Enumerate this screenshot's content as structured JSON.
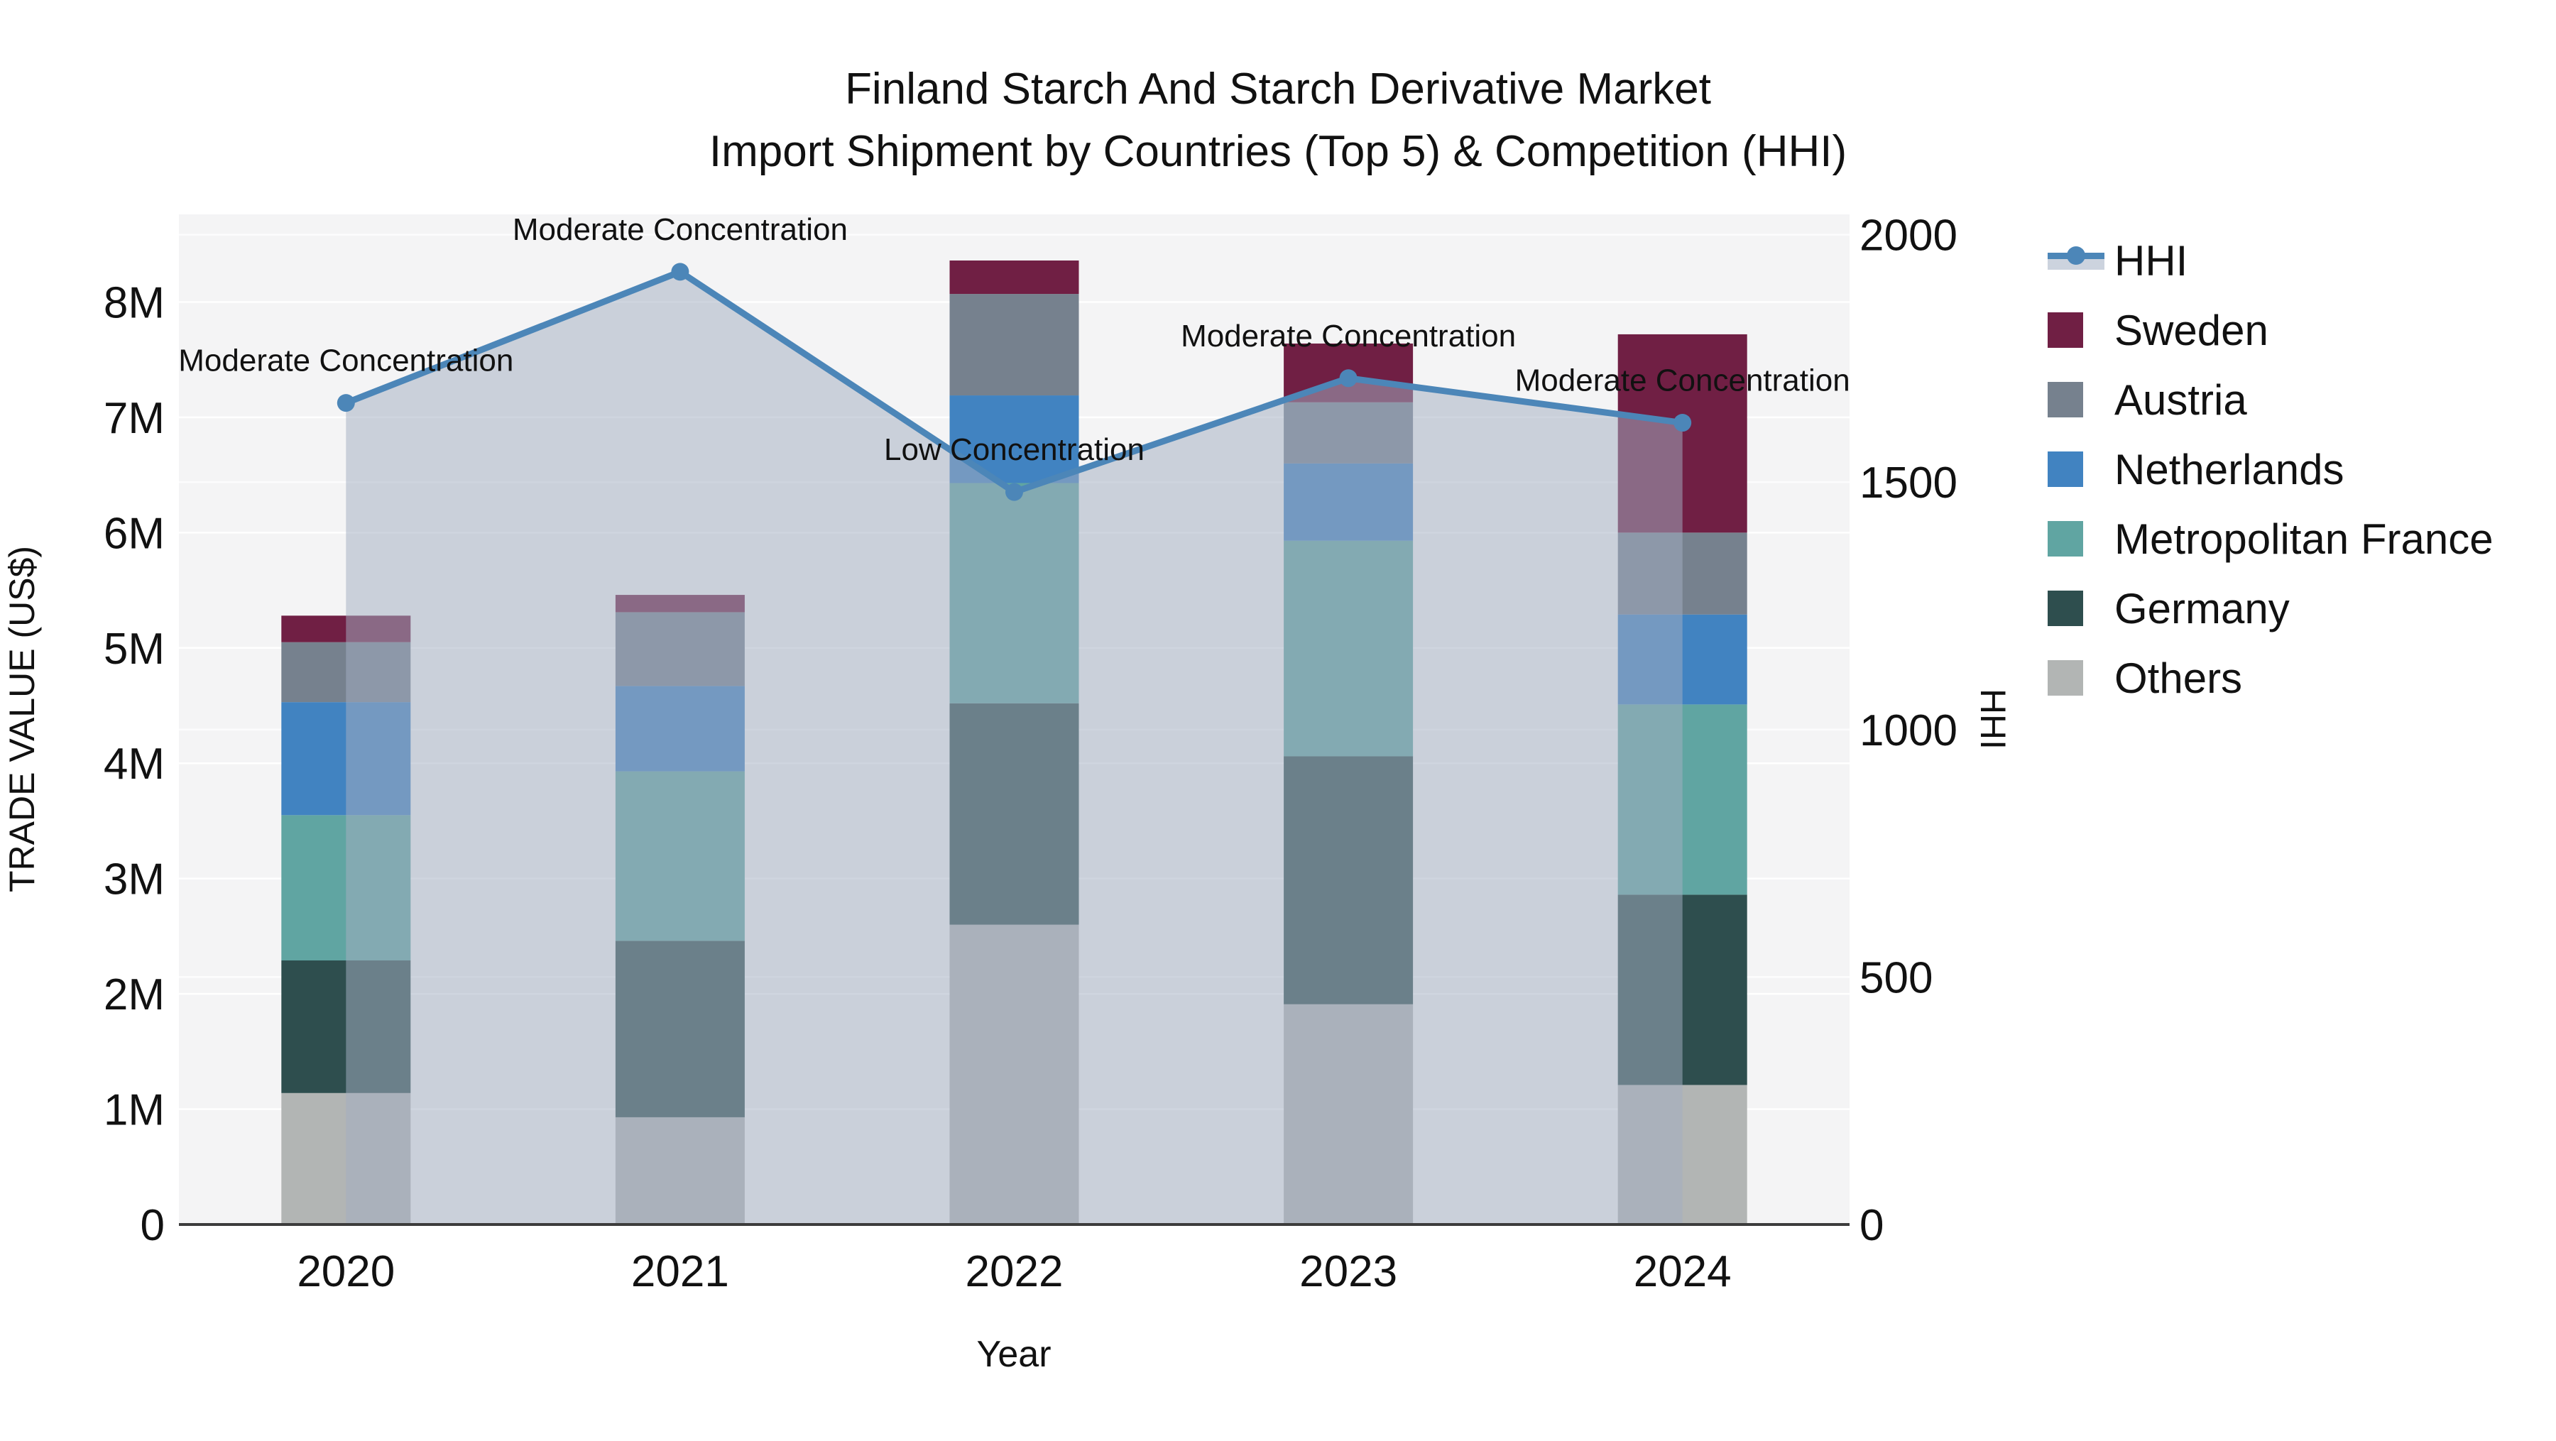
{
  "title": {
    "line1": "Finland Starch And Starch Derivative Market",
    "line2": "Import Shipment by Countries (Top 5) & Competition (HHI)"
  },
  "colors": {
    "plot_bg": "#f4f4f5",
    "grid": "#ffffff",
    "axis_line": "#3c3c3c",
    "text": "#111111",
    "hhi_line": "#4c86b8",
    "hhi_fill": "rgba(163,174,193,0.52)",
    "legend_band": "#ccd3de"
  },
  "legend": [
    {
      "label": "HHI",
      "swatch": "line",
      "color": "#4c86b8"
    },
    {
      "label": "Sweden",
      "swatch": "square",
      "color": "#701f44"
    },
    {
      "label": "Austria",
      "swatch": "square",
      "color": "#76818e"
    },
    {
      "label": "Netherlands",
      "swatch": "square",
      "color": "#4183c1"
    },
    {
      "label": "Metropolitan France",
      "swatch": "square",
      "color": "#60a5a2"
    },
    {
      "label": "Germany",
      "swatch": "square",
      "color": "#2e4e4e"
    },
    {
      "label": "Others",
      "swatch": "square",
      "color": "#b2b5b4"
    }
  ],
  "chart_data": {
    "type": "bar",
    "overlay": "line",
    "title": "Finland Starch And Starch Derivative Market Import Shipment by Countries (Top 5) & Competition (HHI)",
    "xlabel": "Year",
    "ylabel_left": "TRADE VALUE (US$)",
    "ylabel_right": "HHI",
    "categories": [
      "2020",
      "2021",
      "2022",
      "2023",
      "2024"
    ],
    "values_unit": "millions US$",
    "grid": "horizontal",
    "legend_position": "right",
    "ylim_left_musd": [
      0,
      8.76
    ],
    "ylim_right_hhi": [
      0,
      2041
    ],
    "yticks_left": [
      {
        "v": 0,
        "label": "0"
      },
      {
        "v": 1,
        "label": "1M"
      },
      {
        "v": 2,
        "label": "2M"
      },
      {
        "v": 3,
        "label": "3M"
      },
      {
        "v": 4,
        "label": "4M"
      },
      {
        "v": 5,
        "label": "5M"
      },
      {
        "v": 6,
        "label": "6M"
      },
      {
        "v": 7,
        "label": "7M"
      },
      {
        "v": 8,
        "label": "8M"
      }
    ],
    "yticks_right": [
      {
        "v": 0,
        "label": "0"
      },
      {
        "v": 500,
        "label": "500"
      },
      {
        "v": 1000,
        "label": "1000"
      },
      {
        "v": 1500,
        "label": "1500"
      },
      {
        "v": 2000,
        "label": "2000"
      }
    ],
    "stack_order_bottom_to_top": [
      "Others",
      "Germany",
      "Metropolitan France",
      "Netherlands",
      "Austria",
      "Sweden"
    ],
    "series": [
      {
        "name": "Sweden",
        "color": "#701f44",
        "values": [
          0.23,
          0.15,
          0.29,
          0.51,
          1.72
        ]
      },
      {
        "name": "Austria",
        "color": "#76818e",
        "values": [
          0.52,
          0.64,
          0.88,
          0.53,
          0.71
        ]
      },
      {
        "name": "Netherlands",
        "color": "#4183c1",
        "values": [
          0.98,
          0.74,
          0.76,
          0.67,
          0.78
        ]
      },
      {
        "name": "Metropolitan France",
        "color": "#60a5a2",
        "values": [
          1.26,
          1.47,
          1.91,
          1.87,
          1.65
        ]
      },
      {
        "name": "Germany",
        "color": "#2e4e4e",
        "values": [
          1.15,
          1.53,
          1.92,
          2.15,
          1.65
        ]
      },
      {
        "name": "Others",
        "color": "#b2b5b4",
        "values": [
          1.14,
          0.93,
          2.6,
          1.91,
          1.21
        ]
      }
    ],
    "totals_musd": [
      5.28,
      5.46,
      8.36,
      7.64,
      7.72
    ],
    "line_series": {
      "name": "HHI",
      "axis": "right",
      "color": "#4c86b8",
      "fill": "rgba(163,174,193,0.52)",
      "values": [
        1660,
        1925,
        1480,
        1710,
        1620
      ]
    },
    "annotations": [
      "Moderate Concentration",
      "Moderate Concentration",
      "Low Concentration",
      "Moderate Concentration",
      "Moderate Concentration"
    ]
  }
}
